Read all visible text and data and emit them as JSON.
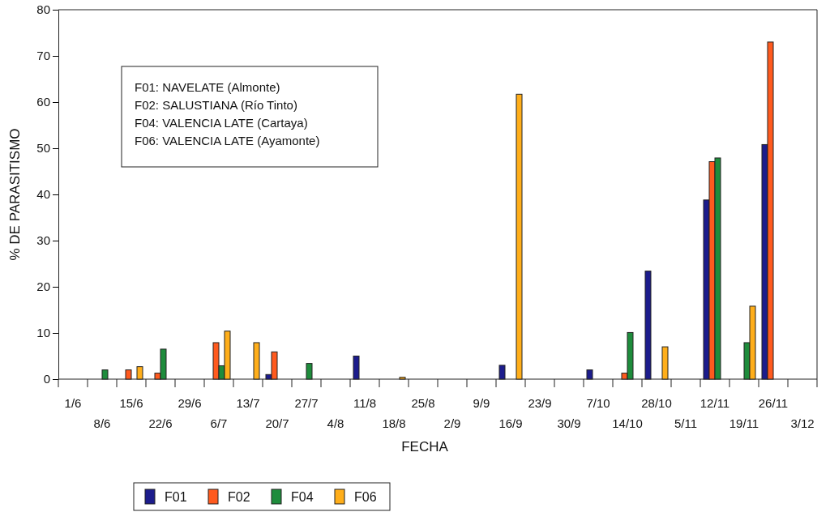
{
  "chart_data": {
    "type": "bar",
    "xlabel": "FECHA",
    "ylabel": "% DE PARASITISMO",
    "categories": [
      "1/6",
      "8/6",
      "15/6",
      "22/6",
      "29/6",
      "6/7",
      "13/7",
      "20/7",
      "27/7",
      "4/8",
      "11/8",
      "18/8",
      "25/8",
      "2/9",
      "9/9",
      "16/9",
      "23/9",
      "30/9",
      "7/10",
      "14/10",
      "28/10",
      "5/11",
      "12/11",
      "19/11",
      "26/11",
      "3/12"
    ],
    "series": [
      {
        "name": "F01",
        "color": "#1c1c8c",
        "values": [
          null,
          null,
          null,
          null,
          null,
          null,
          null,
          1.0,
          null,
          null,
          5.0,
          null,
          null,
          null,
          null,
          3.0,
          null,
          null,
          2.0,
          null,
          23.4,
          null,
          38.8,
          null,
          50.8,
          null
        ]
      },
      {
        "name": "F02",
        "color": "#ff5a1e",
        "values": [
          null,
          null,
          2.0,
          1.3,
          null,
          7.9,
          null,
          5.9,
          null,
          null,
          null,
          null,
          null,
          null,
          null,
          null,
          null,
          null,
          null,
          1.3,
          null,
          null,
          47.1,
          null,
          73.0,
          null
        ]
      },
      {
        "name": "F04",
        "color": "#1e8c3c",
        "values": [
          null,
          2.0,
          null,
          6.5,
          null,
          2.9,
          null,
          null,
          3.4,
          null,
          null,
          null,
          null,
          null,
          null,
          null,
          null,
          null,
          null,
          10.1,
          null,
          null,
          47.9,
          7.9,
          null,
          null
        ]
      },
      {
        "name": "F06",
        "color": "#ffae1a",
        "values": [
          null,
          null,
          2.7,
          null,
          null,
          10.4,
          7.9,
          null,
          null,
          null,
          null,
          0.4,
          null,
          null,
          null,
          61.7,
          null,
          null,
          null,
          null,
          7.0,
          null,
          null,
          15.8,
          null,
          null
        ]
      }
    ],
    "ylim": [
      0,
      80
    ],
    "yticks": [
      0,
      10,
      20,
      30,
      40,
      50,
      60,
      70,
      80
    ],
    "grid": false,
    "legend": "bottom",
    "annotations": [
      "F01: NAVELATE (Almonte)",
      "F02: SALUSTIANA (Río Tinto)",
      "F04: VALENCIA LATE (Cartaya)",
      "F06: VALENCIA LATE (Ayamonte)"
    ]
  }
}
